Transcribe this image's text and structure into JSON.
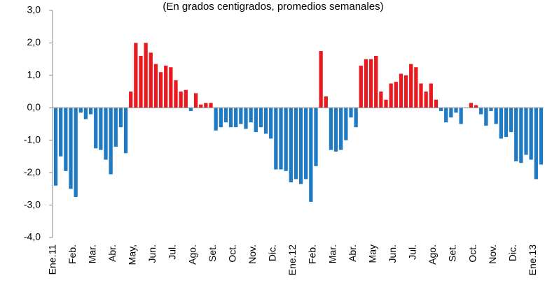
{
  "chart_data": {
    "type": "bar",
    "subtitle": "(En  grados centigrados, promedios semanales)",
    "categories": [
      "Ene.11",
      null,
      null,
      null,
      "Feb.",
      null,
      null,
      null,
      "Mar.",
      null,
      null,
      null,
      "Abr.",
      null,
      null,
      null,
      "May,",
      null,
      null,
      null,
      "Jun.",
      null,
      null,
      null,
      "Jul.",
      null,
      null,
      null,
      "Ago.",
      null,
      null,
      null,
      "Set.",
      null,
      null,
      null,
      "Oct.",
      null,
      null,
      null,
      "Nov.",
      null,
      null,
      null,
      "Dic.",
      null,
      null,
      null,
      "Ene.12",
      null,
      null,
      null,
      "Feb.",
      null,
      null,
      null,
      "Mar.",
      null,
      null,
      null,
      "Abr.",
      null,
      null,
      null,
      "May",
      null,
      null,
      null,
      "Jun.",
      null,
      null,
      null,
      "Jul.",
      null,
      null,
      null,
      "Ago.",
      null,
      null,
      null,
      "Set.",
      null,
      null,
      null,
      "Oct.",
      null,
      null,
      null,
      "Nov.",
      null,
      null,
      null,
      "Dic.",
      null,
      null,
      null,
      "Ene.13",
      null
    ],
    "values": [
      -2.4,
      -1.5,
      -1.95,
      -2.5,
      -2.75,
      -0.15,
      -0.35,
      -0.2,
      -1.25,
      -1.3,
      -1.6,
      -2.05,
      -1.2,
      -0.6,
      -1.4,
      0.5,
      2.0,
      1.6,
      2.0,
      1.7,
      1.35,
      1.1,
      1.3,
      1.25,
      0.85,
      0.5,
      0.55,
      -0.1,
      0.45,
      0.1,
      0.15,
      0.15,
      -0.7,
      -0.6,
      -0.45,
      -0.6,
      -0.6,
      -0.5,
      -0.65,
      -0.45,
      -0.75,
      -0.6,
      -0.8,
      -0.95,
      -1.9,
      -1.9,
      -1.95,
      -2.3,
      -2.2,
      -2.35,
      -2.2,
      -2.9,
      -1.8,
      1.75,
      0.35,
      -1.3,
      -1.35,
      -1.3,
      -1.0,
      -0.3,
      -0.6,
      1.3,
      1.5,
      1.5,
      1.6,
      0.5,
      0.25,
      0.75,
      0.8,
      1.05,
      1.0,
      1.35,
      1.25,
      0.75,
      0.5,
      0.75,
      0.25,
      -0.1,
      -0.45,
      -0.3,
      -0.15,
      -0.5,
      0,
      0.15,
      0.08,
      -0.2,
      -0.55,
      -0.1,
      -0.5,
      -0.95,
      -0.9,
      -0.75,
      -1.65,
      -1.7,
      -1.45,
      -1.6,
      -2.2,
      -1.75
    ],
    "positive_color": "#e8191f",
    "negative_color": "#1f7ac4",
    "ylim": [
      -4,
      3
    ],
    "yticks": [
      {
        "value": 3,
        "label": "3,0"
      },
      {
        "value": 2,
        "label": "2,0"
      },
      {
        "value": 1,
        "label": "1,0"
      },
      {
        "value": 0,
        "label": "0,0"
      },
      {
        "value": -1,
        "label": "-1,0"
      },
      {
        "value": -2,
        "label": "-2,0"
      },
      {
        "value": -3,
        "label": "-3,0"
      },
      {
        "value": -4,
        "label": "-4,0"
      }
    ],
    "grid": false
  }
}
